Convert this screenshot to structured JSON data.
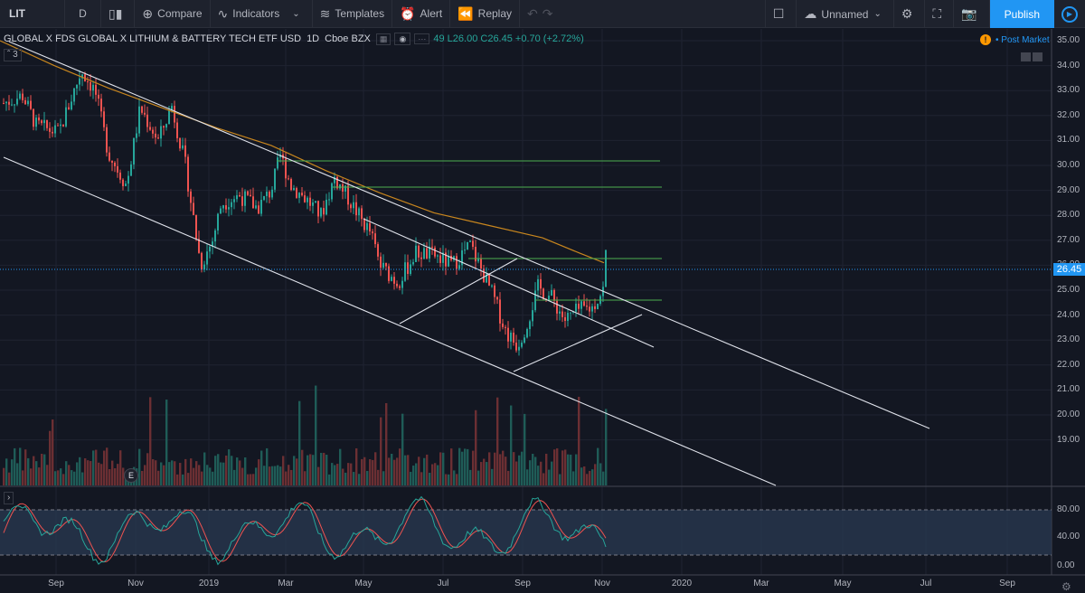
{
  "toolbar": {
    "symbol": "LIT",
    "interval": "D",
    "compare": "Compare",
    "indicators": "Indicators",
    "templates": "Templates",
    "alert": "Alert",
    "replay": "Replay",
    "layout_name": "Unnamed",
    "publish": "Publish"
  },
  "legend": {
    "title": "GLOBAL X FDS GLOBAL X LITHIUM & BATTERY TECH ETF USD",
    "interval": "1D",
    "exchange": "Cboe BZX",
    "ohlc": "49 L26.00 C26.45 +0.70 (+2.72%)",
    "collapse": "3"
  },
  "post_market": "Post Market",
  "last_price": "26.45",
  "event_badge": "E",
  "chart_data": {
    "type": "candlestick",
    "price_axis": [
      "35.00",
      "34.00",
      "33.00",
      "32.00",
      "31.00",
      "30.00",
      "29.00",
      "28.00",
      "27.00",
      "26.00",
      "25.00",
      "24.00",
      "23.00",
      "22.00",
      "21.00",
      "20.00",
      "19.00"
    ],
    "oscillator_axis": [
      "80.00",
      "40.00",
      "0.00"
    ],
    "time_axis": [
      "Sep",
      "Nov",
      "2019",
      "Mar",
      "May",
      "Jul",
      "Sep",
      "Nov",
      "2020",
      "Mar",
      "May",
      "Jul",
      "Sep"
    ],
    "last_close": 26.45,
    "horizontal_levels": [
      30.5,
      29.5,
      26.8,
      25.2
    ],
    "colors": {
      "up": "#26a69a",
      "down": "#ef5350",
      "ma": "#c8861e",
      "levels": "#4caf50",
      "trendlines": "#e0e3eb",
      "stoch_k": "#26a69a",
      "stoch_d": "#ef5350",
      "stoch_band": "#2a3a52"
    }
  }
}
